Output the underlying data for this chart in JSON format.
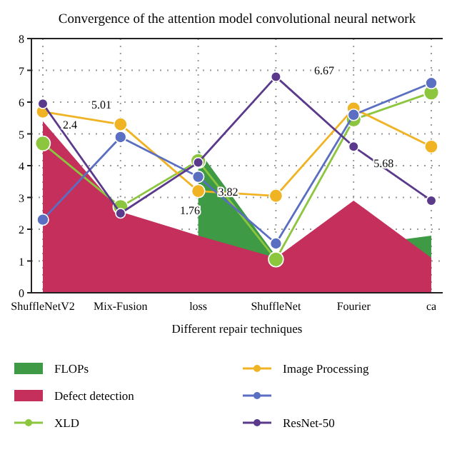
{
  "chart_data": {
    "type": "line",
    "title": "Convergence of the attention model convolutional neural network",
    "xlabel": "Different repair techniques",
    "categories": [
      "ShuffleNetV2",
      "Mix-Fusion",
      "loss",
      "ShuffleNet",
      "Fourier",
      "ca"
    ],
    "ylim": [
      0,
      8
    ],
    "yticks": [
      0,
      1,
      2,
      3,
      4,
      5,
      6,
      7,
      8
    ],
    "grid": true,
    "legend": "bottom",
    "series": [
      {
        "name": "FLOPs",
        "type": "area",
        "color": "#3f9a45",
        "values": [
          null,
          null,
          4.5,
          1.15,
          null,
          1.8
        ]
      },
      {
        "name": "Defect detection",
        "type": "area",
        "color": "#c42f5c",
        "values": [
          5.4,
          2.55,
          1.8,
          1.1,
          2.9,
          1.1
        ]
      },
      {
        "name": "XLD",
        "color": "#8cc63f",
        "marker": "circle",
        "values": [
          4.7,
          2.7,
          4.15,
          1.05,
          5.45,
          6.3
        ]
      },
      {
        "name": "Image Processing",
        "color": "#f0b323",
        "marker": "circle",
        "values": [
          5.7,
          5.3,
          3.2,
          3.05,
          5.8,
          4.6
        ]
      },
      {
        "color": "#5b6fc2",
        "marker": "circle",
        "values": [
          2.3,
          4.9,
          3.65,
          1.55,
          5.6,
          6.6
        ]
      },
      {
        "name": "ResNet-50",
        "color": "#5b3a8c",
        "marker": "circle",
        "values": [
          5.95,
          2.5,
          4.1,
          6.8,
          4.6,
          2.9
        ]
      }
    ],
    "annotations": [
      {
        "text": "2.4",
        "x": "ShuffleNetV2",
        "y": 5.7
      },
      "5.01",
      {
        "text": "3.82",
        "x": "loss",
        "y": 3.6
      },
      "1.76",
      {
        "text": "5.68",
        "x": "Fourier",
        "y": 4.5
      },
      "6.67"
    ]
  }
}
